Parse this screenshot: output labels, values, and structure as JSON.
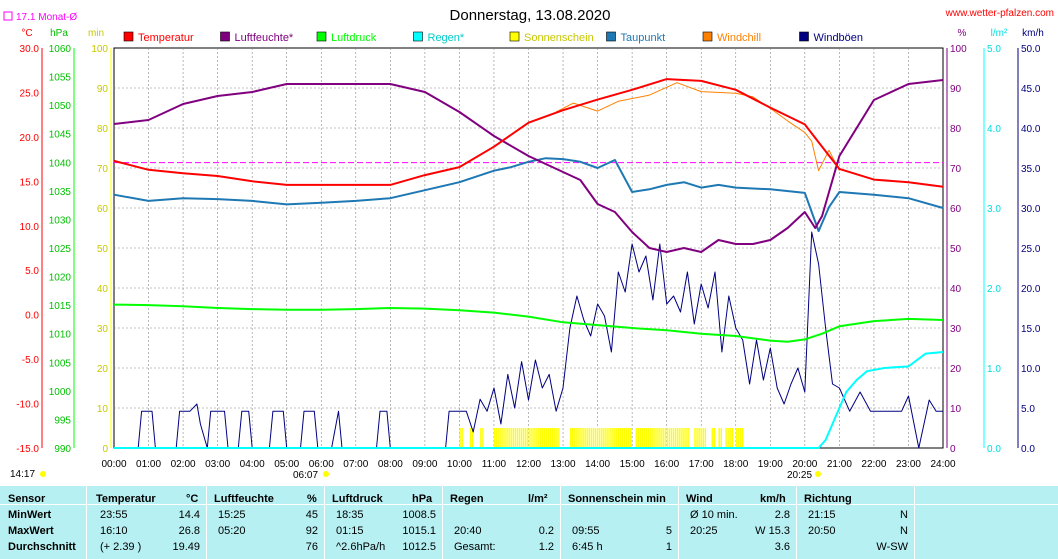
{
  "header": {
    "title": "Donnerstag, 13.08.2020",
    "site": "www.wetter-pfalzen.com",
    "month_avg": "17.1 Monat-Ø",
    "time_left": "14:17",
    "sunrise": "06:07",
    "sunset": "20:25"
  },
  "axes": {
    "temp": {
      "unit": "°C",
      "ticks": [
        "30.0",
        "25.0",
        "20.0",
        "15.0",
        "10.0",
        "5.0",
        "0.0",
        "-5.0",
        "-10.0",
        "-15.0"
      ],
      "min": -15,
      "max": 30
    },
    "pressure": {
      "unit": "hPa",
      "ticks": [
        "1060",
        "1055",
        "1050",
        "1045",
        "1040",
        "1035",
        "1030",
        "1025",
        "1020",
        "1015",
        "1010",
        "1005",
        "1000",
        "995",
        "990"
      ],
      "min": 990,
      "max": 1060
    },
    "minutes": {
      "unit": "min",
      "ticks": [
        "100",
        "90",
        "80",
        "70",
        "60",
        "50",
        "40",
        "30",
        "20",
        "10",
        "0"
      ],
      "min": 0,
      "max": 100
    },
    "humidity": {
      "unit": "%",
      "ticks": [
        "100",
        "90",
        "80",
        "70",
        "60",
        "50",
        "40",
        "30",
        "20",
        "10",
        "0"
      ],
      "min": 0,
      "max": 100
    },
    "rain": {
      "unit": "l/m²",
      "ticks": [
        "5.0",
        "4.0",
        "3.0",
        "2.0",
        "1.0",
        "0.0"
      ],
      "min": 0,
      "max": 5
    },
    "wind": {
      "unit": "km/h",
      "ticks": [
        "50.0",
        "45.0",
        "40.0",
        "35.0",
        "30.0",
        "25.0",
        "20.0",
        "15.0",
        "10.0",
        "5.0",
        "0.0"
      ],
      "min": 0,
      "max": 50
    },
    "x_ticks": [
      "00:00",
      "01:00",
      "02:00",
      "03:00",
      "04:00",
      "05:00",
      "06:00",
      "07:00",
      "08:00",
      "09:00",
      "10:00",
      "11:00",
      "12:00",
      "13:00",
      "14:00",
      "15:00",
      "16:00",
      "17:00",
      "18:00",
      "19:00",
      "20:00",
      "21:00",
      "22:00",
      "23:00",
      "24:00"
    ]
  },
  "legend": [
    {
      "label": "Temperatur",
      "color": "#ff0000"
    },
    {
      "label": "Luftfeuchte*",
      "color": "#800080"
    },
    {
      "label": "Luftdruck",
      "color": "#00ff00"
    },
    {
      "label": "Regen*",
      "color": "#00ffff"
    },
    {
      "label": "Sonnenschein",
      "color": "#ffff00"
    },
    {
      "label": "Taupunkt",
      "color": "#1e78b4"
    },
    {
      "label": "Windchill",
      "color": "#ff8000"
    },
    {
      "label": "Windböen",
      "color": "#000080"
    }
  ],
  "chart_data": {
    "type": "line",
    "x_unit": "hour",
    "reference_line": {
      "label": "17.1 Monat-Ø",
      "value": 17.1,
      "unit": "°C",
      "color": "#ff00ff"
    },
    "series": [
      {
        "name": "Temperatur",
        "color": "#ff0000",
        "axis": "temp",
        "x": [
          0,
          1,
          2,
          3,
          4,
          5,
          6,
          7,
          8,
          9,
          10,
          11,
          12,
          13,
          14,
          15,
          16,
          17,
          18,
          19,
          20,
          20.4,
          21,
          22,
          23,
          24
        ],
        "values": [
          17.3,
          16.3,
          15.9,
          15.6,
          15.0,
          14.6,
          14.6,
          14.6,
          14.6,
          15.7,
          16.6,
          18.9,
          21.6,
          23.0,
          24.2,
          25.3,
          26.5,
          26.3,
          25.3,
          23.3,
          21.4,
          19.4,
          16.4,
          15.2,
          14.9,
          14.4
        ]
      },
      {
        "name": "Windchill",
        "color": "#ff8000",
        "axis": "temp",
        "x": [
          12.8,
          13.3,
          14,
          14.6,
          15.5,
          16.3,
          17,
          18,
          18.5,
          19,
          19.5,
          20,
          20.2,
          20.4,
          20.7,
          21
        ],
        "values": [
          22.8,
          23.8,
          22.9,
          24.0,
          24.7,
          26.1,
          25.1,
          24.9,
          24.5,
          23.2,
          21.8,
          20.5,
          19.5,
          16.2,
          18.5,
          16.2
        ]
      },
      {
        "name": "Luftfeuchte*",
        "color": "#800080",
        "axis": "humidity",
        "x": [
          0,
          1,
          2,
          3,
          4,
          5,
          6,
          7,
          8,
          9,
          10,
          11,
          12,
          13,
          13.5,
          14,
          14.5,
          15,
          15.5,
          16,
          16.5,
          17,
          17.5,
          18,
          18.5,
          19,
          19.5,
          20,
          20.3,
          20.5,
          21,
          22,
          23,
          24
        ],
        "values": [
          81,
          82,
          86,
          88,
          89,
          91,
          91,
          91,
          91,
          89,
          84,
          78,
          73,
          69,
          67,
          61,
          59,
          54,
          50,
          49,
          50,
          49,
          52,
          51,
          51,
          52,
          55,
          59,
          55,
          58,
          73,
          87,
          91,
          92
        ]
      },
      {
        "name": "Luftdruck",
        "color": "#00ff00",
        "axis": "pressure",
        "x": [
          0,
          1,
          2,
          3,
          4,
          5,
          6,
          7,
          8,
          9,
          10,
          11,
          12,
          13,
          14,
          15,
          16,
          17,
          18,
          19,
          19.5,
          20,
          20.5,
          21,
          22,
          23,
          24
        ],
        "values": [
          1015.1,
          1015.0,
          1014.8,
          1014.5,
          1014.3,
          1014.2,
          1014.2,
          1014.3,
          1014.5,
          1014.4,
          1014.1,
          1013.7,
          1013.0,
          1012.0,
          1011.5,
          1011.0,
          1010.6,
          1010.0,
          1009.6,
          1008.8,
          1008.6,
          1009.0,
          1010.0,
          1011.3,
          1012.2,
          1012.6,
          1012.4
        ]
      },
      {
        "name": "Taupunkt",
        "color": "#1e78b4",
        "axis": "temp",
        "x": [
          0,
          1,
          2,
          3,
          4,
          5,
          6,
          7,
          8,
          9,
          10,
          11,
          11.5,
          12,
          12.5,
          13,
          13.5,
          14,
          14.5,
          15,
          15.5,
          16,
          16.5,
          17,
          17.5,
          18,
          19,
          20,
          20.4,
          20.7,
          21,
          22,
          23,
          24
        ],
        "values": [
          13.5,
          12.8,
          13.1,
          13.0,
          12.8,
          12.4,
          12.6,
          12.8,
          13.1,
          14.0,
          14.9,
          16.2,
          16.6,
          17.2,
          17.6,
          17.5,
          17.2,
          16.5,
          17.4,
          13.8,
          14.1,
          14.6,
          14.9,
          14.3,
          14.6,
          14.3,
          14.1,
          13.7,
          9.4,
          12.1,
          13.8,
          13.5,
          13.1,
          12.0
        ]
      },
      {
        "name": "Regen*",
        "color": "#00ffff",
        "axis": "rain",
        "x": [
          0,
          20.4,
          20.6,
          20.9,
          21.2,
          21.5,
          21.8,
          22.3,
          23,
          23.5,
          24
        ],
        "values": [
          0,
          0,
          0.1,
          0.4,
          0.7,
          0.85,
          0.96,
          1.0,
          1.02,
          1.18,
          1.2
        ]
      },
      {
        "name": "Windböen",
        "color": "#000080",
        "axis": "wind",
        "x": [
          0,
          0.7,
          0.8,
          1.1,
          1.2,
          1.8,
          1.9,
          2.2,
          2.4,
          2.5,
          2.7,
          2.8,
          3.2,
          3.3,
          3.6,
          3.7,
          3.9,
          4.0,
          4.5,
          4.6,
          4.9,
          5.0,
          5.4,
          5.5,
          5.8,
          5.9,
          6.3,
          6.5,
          6.6,
          7.6,
          7.7,
          7.9,
          8.0,
          9.6,
          9.7,
          10.2,
          10.4,
          10.6,
          10.8,
          11.0,
          11.2,
          11.4,
          11.6,
          11.8,
          12.0,
          12.2,
          12.4,
          12.6,
          12.8,
          13.0,
          13.2,
          13.4,
          13.6,
          13.8,
          14.0,
          14.2,
          14.4,
          14.6,
          14.8,
          15.0,
          15.2,
          15.4,
          15.6,
          15.8,
          16.0,
          16.2,
          16.4,
          16.6,
          16.8,
          17.0,
          17.2,
          17.4,
          17.6,
          17.8,
          18.0,
          18.2,
          18.4,
          18.6,
          18.8,
          19.0,
          19.2,
          19.4,
          19.6,
          19.8,
          20.0,
          20.2,
          20.4,
          20.6,
          20.8,
          21.0,
          21.3,
          21.6,
          21.9,
          22.2,
          22.5,
          22.8,
          23.0,
          23.3,
          23.6,
          23.8,
          24.0
        ],
        "values": [
          0,
          0,
          4.6,
          4.6,
          0,
          0,
          4.6,
          4.6,
          5.5,
          3.0,
          0,
          4.6,
          4.6,
          0,
          0,
          4.6,
          4.6,
          0,
          0,
          4.6,
          4.6,
          0,
          0,
          4.6,
          4.6,
          0,
          0,
          4.6,
          0,
          0,
          4.6,
          4.6,
          0,
          0,
          4.6,
          4.6,
          2.0,
          6.1,
          4.6,
          7.5,
          3.0,
          9.2,
          5.0,
          10.8,
          6.0,
          11.0,
          7.5,
          9.2,
          4.6,
          7.5,
          15.0,
          19.0,
          16.0,
          14.0,
          18.0,
          16.5,
          12.0,
          22.0,
          19.5,
          25.5,
          22.0,
          24.0,
          18.5,
          25.5,
          18.0,
          19.0,
          17.0,
          22.0,
          15.5,
          20.5,
          17.5,
          22.0,
          12.0,
          19.0,
          15.0,
          13.5,
          8.0,
          13.5,
          8.5,
          12.5,
          7.5,
          5.5,
          8.0,
          10.0,
          7.0,
          27.0,
          23.0,
          15.0,
          8.0,
          7.5,
          4.6,
          7.0,
          4.6,
          4.6,
          4.6,
          4.6,
          6.5,
          0,
          6.0,
          4.6,
          4.6
        ]
      }
    ],
    "sunshine_intervals": [
      [
        10.0,
        10.1
      ],
      [
        10.3,
        10.4
      ],
      [
        10.6,
        10.7
      ],
      [
        11.0,
        12.9
      ],
      [
        13.2,
        15.0
      ],
      [
        15.1,
        16.6
      ],
      [
        16.8,
        17.1
      ],
      [
        17.3,
        17.4
      ],
      [
        17.5,
        17.6
      ],
      [
        17.7,
        17.9
      ],
      [
        18.0,
        18.2
      ]
    ]
  },
  "stats": {
    "headers": {
      "sensor": "Sensor",
      "temperature": "Temperatur",
      "temp_unit": "°C",
      "humidity": "Luftfeuchte",
      "hum_unit": "%",
      "pressure": "Luftdruck",
      "pres_unit": "hPa",
      "rain": "Regen",
      "rain_unit": "l/m²",
      "sun": "Sonnenschein min",
      "wind": "Wind",
      "wind_unit": "km/h",
      "direction": "Richtung"
    },
    "rows": [
      {
        "label": "MinWert",
        "temp_time": "23:55",
        "temp": "14.4",
        "hum_time": "15:25",
        "hum": "45",
        "pres_time": "18:35",
        "pres": "1008.5",
        "rain_time": "",
        "rain": "",
        "sun_time": "",
        "sun": "",
        "wind_time": "Ø 10 min.",
        "wind": "2.8",
        "dir_time": "21:15",
        "dir": "N"
      },
      {
        "label": "MaxWert",
        "temp_time": "16:10",
        "temp": "26.8",
        "hum_time": "05:20",
        "hum": "92",
        "pres_time": "01:15",
        "pres": "1015.1",
        "rain_time": "20:40",
        "rain": "0.2",
        "sun_time": "09:55",
        "sun": "5",
        "wind_time": "20:25",
        "wind": "W 15.3",
        "dir_time": "20:50",
        "dir": "N"
      },
      {
        "label": "Durchschnitt",
        "temp_time": "(+ 2.39 )",
        "temp": "19.49",
        "hum_time": "",
        "hum": "76",
        "pres_time": "^2.6hPa/h",
        "pres": "1012.5",
        "rain_time": "Gesamt:",
        "rain": "1.2",
        "sun_time": "6:45 h",
        "sun": "1",
        "wind_time": "",
        "wind": "3.6",
        "dir_time": "",
        "dir": "W-SW"
      }
    ]
  }
}
